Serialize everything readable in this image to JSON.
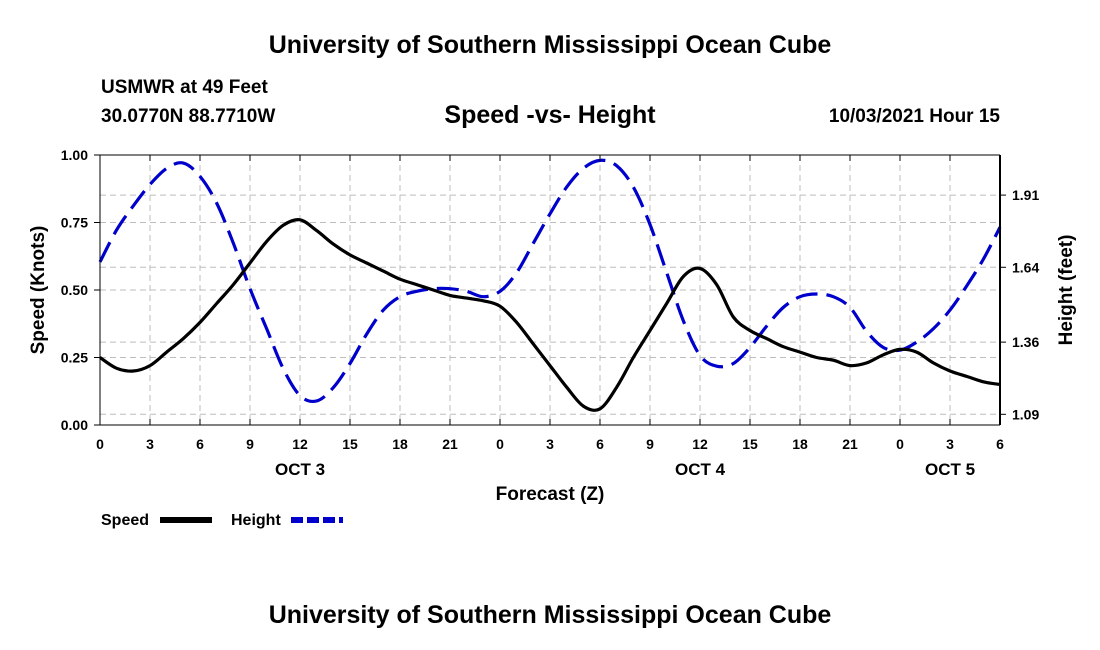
{
  "header": {
    "title": "University of Southern Mississippi Ocean Cube",
    "station": "USMWR at 49 Feet",
    "coordinates": "30.0770N  88.7710W",
    "date": "10/03/2021 Hour 15"
  },
  "footer": {
    "title": "University of Southern Mississippi Ocean Cube"
  },
  "chart_data": {
    "type": "line",
    "title": "Speed -vs- Height",
    "xlabel": "Forecast (Z)",
    "ylabel": "Speed (Knots)",
    "y2label": "Height (feet)",
    "x_ticks": [
      "0",
      "3",
      "6",
      "9",
      "12",
      "15",
      "18",
      "21",
      "0",
      "3",
      "6",
      "9",
      "12",
      "15",
      "18",
      "21",
      "0",
      "3",
      "6"
    ],
    "x_range_hours": [
      0,
      54
    ],
    "date_labels": [
      {
        "label": "OCT 3",
        "hour": 12
      },
      {
        "label": "OCT 4",
        "hour": 36
      },
      {
        "label": "OCT 5",
        "hour": 51
      }
    ],
    "ylim": [
      0,
      1
    ],
    "y_ticks": [
      "0.00",
      "0.25",
      "0.50",
      "0.75",
      "1.00"
    ],
    "y_tick_values": [
      0,
      0.25,
      0.5,
      0.75,
      1.0
    ],
    "y2lim": [
      1.05,
      2.06
    ],
    "y2_ticks": [
      "1.09",
      "1.36",
      "1.64",
      "1.91"
    ],
    "y2_tick_values": [
      1.09,
      1.36,
      1.64,
      1.91
    ],
    "grid": true,
    "legend": [
      {
        "name": "Speed",
        "color": "#000000",
        "style": "solid"
      },
      {
        "name": "Height",
        "color": "#0000cc",
        "style": "dashed"
      }
    ],
    "series": [
      {
        "name": "Speed",
        "axis": "left",
        "color": "#000000",
        "x": [
          0,
          1,
          2,
          3,
          4,
          5,
          6,
          7,
          8,
          9,
          10,
          11,
          12,
          13,
          14,
          15,
          16,
          17,
          18,
          19,
          20,
          21,
          22,
          23,
          24,
          25,
          26,
          27,
          28,
          29,
          30,
          31,
          32,
          33,
          34,
          35,
          36,
          37,
          38,
          39,
          40,
          41,
          42,
          43,
          44,
          45,
          46,
          47,
          48,
          49,
          50,
          51,
          52,
          53,
          54
        ],
        "values": [
          0.25,
          0.21,
          0.2,
          0.22,
          0.27,
          0.32,
          0.38,
          0.45,
          0.52,
          0.6,
          0.68,
          0.74,
          0.76,
          0.72,
          0.67,
          0.63,
          0.6,
          0.57,
          0.54,
          0.52,
          0.5,
          0.48,
          0.47,
          0.46,
          0.44,
          0.38,
          0.3,
          0.22,
          0.14,
          0.07,
          0.06,
          0.14,
          0.25,
          0.35,
          0.45,
          0.55,
          0.58,
          0.52,
          0.4,
          0.35,
          0.32,
          0.29,
          0.27,
          0.25,
          0.24,
          0.22,
          0.23,
          0.26,
          0.28,
          0.27,
          0.23,
          0.2,
          0.18,
          0.16,
          0.15
        ]
      },
      {
        "name": "Height",
        "axis": "right",
        "color": "#0000cc",
        "x": [
          0,
          1,
          2,
          3,
          4,
          5,
          6,
          7,
          8,
          9,
          10,
          11,
          12,
          13,
          14,
          15,
          16,
          17,
          18,
          19,
          20,
          21,
          22,
          23,
          24,
          25,
          26,
          27,
          28,
          29,
          30,
          31,
          32,
          33,
          34,
          35,
          36,
          37,
          38,
          39,
          40,
          41,
          42,
          43,
          44,
          45,
          46,
          47,
          48,
          49,
          50,
          51,
          52,
          53,
          54
        ],
        "values": [
          1.66,
          1.78,
          1.87,
          1.95,
          2.01,
          2.03,
          1.98,
          1.88,
          1.73,
          1.56,
          1.41,
          1.26,
          1.16,
          1.14,
          1.19,
          1.28,
          1.39,
          1.48,
          1.53,
          1.55,
          1.56,
          1.56,
          1.55,
          1.53,
          1.55,
          1.62,
          1.73,
          1.84,
          1.94,
          2.01,
          2.04,
          2.02,
          1.94,
          1.8,
          1.62,
          1.44,
          1.31,
          1.27,
          1.28,
          1.34,
          1.42,
          1.49,
          1.53,
          1.54,
          1.53,
          1.49,
          1.4,
          1.34,
          1.33,
          1.36,
          1.41,
          1.48,
          1.57,
          1.67,
          1.79
        ]
      }
    ]
  }
}
